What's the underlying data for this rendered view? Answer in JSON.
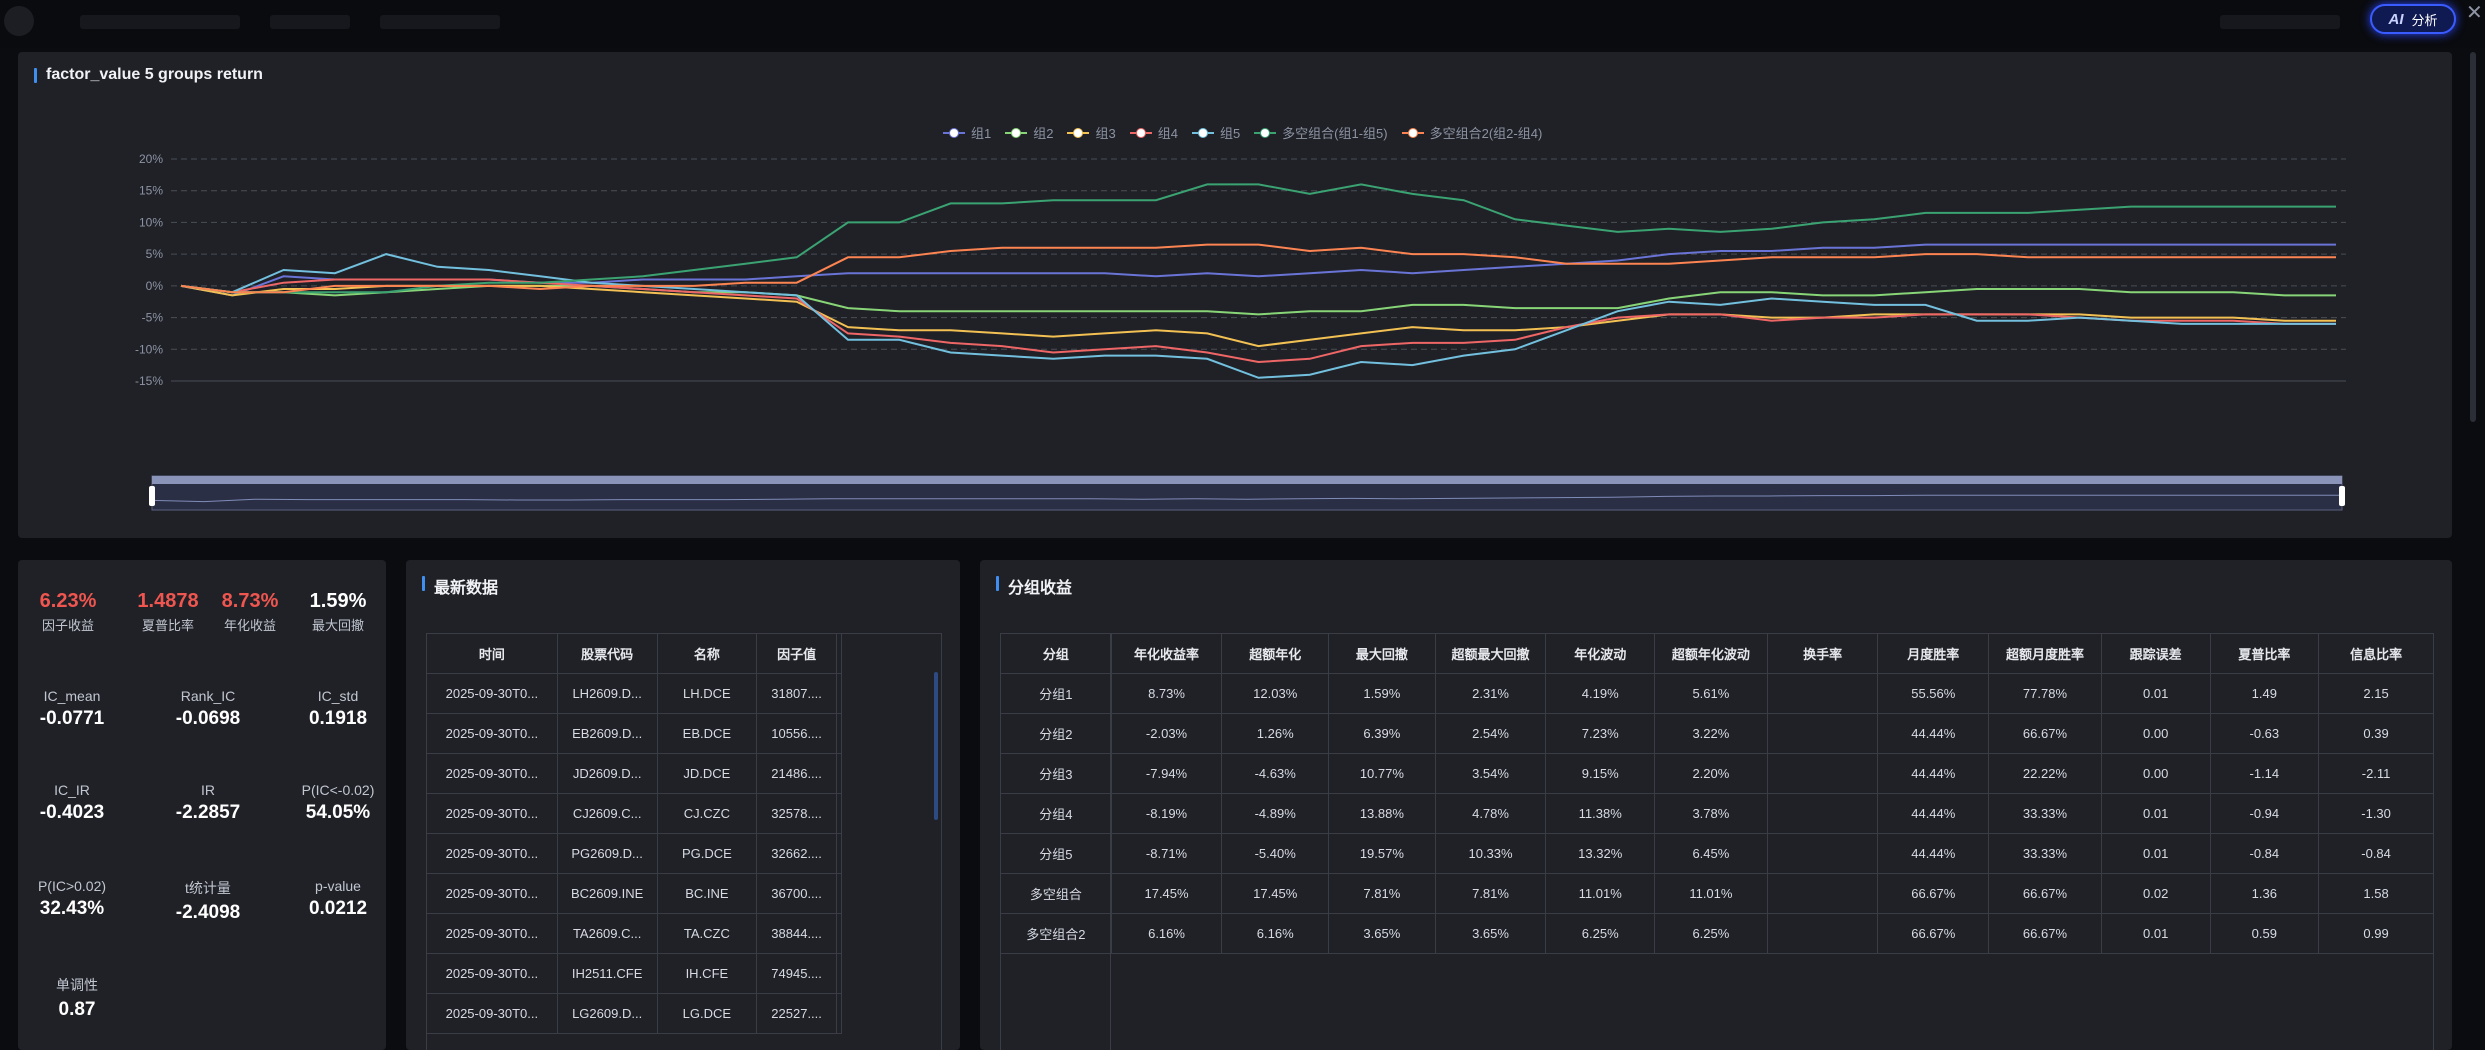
{
  "header": {
    "ai_button_label": "分析",
    "ai_icon_text": "AI",
    "close_glyph": "✕"
  },
  "chart_panel": {
    "title": "factor_value 5 groups return"
  },
  "chart_data": {
    "type": "line",
    "title": "factor_value 5 groups return",
    "ylim": [
      -15,
      20
    ],
    "y_ticks": [
      "20%",
      "15%",
      "10%",
      "5%",
      "0%",
      "-5%",
      "-10%",
      "-15%"
    ],
    "grid": true,
    "legend_position": "top-center",
    "series": [
      {
        "name": "组1",
        "color": "#6a74d6",
        "values": [
          0,
          -1.5,
          1.5,
          1,
          1,
          1,
          1,
          0.5,
          0.5,
          1,
          1,
          1,
          1.5,
          2,
          2,
          2,
          2,
          2,
          2,
          1.5,
          2,
          1.5,
          2,
          2.5,
          2,
          2.5,
          3,
          3.5,
          4,
          5,
          5.5,
          5.5,
          6,
          6,
          6.5,
          6.5,
          6.5,
          6.5,
          6.5,
          6.5,
          6.5,
          6.5,
          6.5
        ]
      },
      {
        "name": "组2",
        "color": "#88d577",
        "values": [
          0,
          -1,
          -1,
          -1.5,
          -1,
          -0.5,
          0,
          0,
          0,
          -0.5,
          -1,
          -1,
          -1.5,
          -3.5,
          -4,
          -4,
          -4,
          -4,
          -4,
          -4,
          -4,
          -4.5,
          -4,
          -4,
          -3,
          -3,
          -3.5,
          -3.5,
          -3.5,
          -2,
          -1,
          -1,
          -1.5,
          -1.5,
          -1,
          -0.5,
          -0.5,
          -0.5,
          -1,
          -1,
          -1,
          -1.5,
          -1.5
        ]
      },
      {
        "name": "组3",
        "color": "#f2c053",
        "values": [
          0,
          -1.5,
          -0.5,
          -0.5,
          0,
          0,
          0,
          0,
          -0.5,
          -1,
          -1.5,
          -2,
          -2.5,
          -6.5,
          -7,
          -7,
          -7.5,
          -8,
          -7.5,
          -7,
          -7.5,
          -9.5,
          -8.5,
          -7.5,
          -6.5,
          -7,
          -7,
          -6.5,
          -5.5,
          -4.5,
          -4.5,
          -5,
          -5,
          -4.5,
          -4.5,
          -4.5,
          -4.5,
          -4.5,
          -5,
          -5,
          -5,
          -5.5,
          -5.5
        ]
      },
      {
        "name": "组4",
        "color": "#ee6666",
        "values": [
          0,
          -1,
          0.5,
          1,
          1,
          1,
          1,
          0.5,
          0,
          -0.5,
          -1,
          -1.5,
          -2,
          -7.5,
          -8,
          -9,
          -9.5,
          -10.5,
          -10,
          -9.5,
          -10.5,
          -12,
          -11.5,
          -9.5,
          -9,
          -9,
          -8.5,
          -6.5,
          -5,
          -4.5,
          -4.5,
          -5.5,
          -5,
          -5,
          -4.5,
          -4.5,
          -4.5,
          -5,
          -5.5,
          -5.5,
          -5.5,
          -6,
          -6
        ]
      },
      {
        "name": "组5",
        "color": "#73c0de",
        "values": [
          0,
          -1,
          2.5,
          2,
          5,
          3,
          2.5,
          1.5,
          0.5,
          0,
          -0.5,
          -1,
          -1.5,
          -8.5,
          -8.5,
          -10.5,
          -11,
          -11.5,
          -11,
          -11,
          -11.5,
          -14.5,
          -14,
          -12,
          -12.5,
          -11,
          -10,
          -7,
          -4,
          -2.5,
          -3,
          -2,
          -2.5,
          -3,
          -3,
          -5.5,
          -5.5,
          -5,
          -5.5,
          -6,
          -6,
          -6,
          -6
        ]
      },
      {
        "name": "多空组合(组1-组5)",
        "color": "#3ba272",
        "values": [
          0,
          -1,
          -1,
          -1,
          -1,
          0,
          0.5,
          0.5,
          1,
          1.5,
          2.5,
          3.5,
          4.5,
          10,
          10,
          13,
          13,
          13.5,
          13.5,
          13.5,
          16,
          16,
          14.5,
          16,
          14.5,
          13.5,
          10.5,
          9.5,
          8.5,
          9,
          8.5,
          9,
          10,
          10.5,
          11.5,
          11.5,
          11.5,
          12,
          12.5,
          12.5,
          12.5,
          12.5,
          12.5
        ]
      },
      {
        "name": "多空组合2(组2-组4)",
        "color": "#fc8452",
        "values": [
          0,
          -1,
          -1,
          0,
          0,
          0,
          0,
          -0.5,
          0,
          0,
          0,
          0.5,
          0.5,
          4.5,
          4.5,
          5.5,
          6,
          6,
          6,
          6,
          6.5,
          6.5,
          5.5,
          6,
          5,
          5,
          4.5,
          3.5,
          3.5,
          3.5,
          4,
          4.5,
          4.5,
          4.5,
          5,
          5,
          4.5,
          4.5,
          4.5,
          4.5,
          4.5,
          4.5,
          4.5
        ]
      }
    ]
  },
  "stats": {
    "top": [
      {
        "value": "6.23%",
        "label": "因子收益",
        "red": true
      },
      {
        "value": "1.4878",
        "label": "夏普比率",
        "red": true
      },
      {
        "value": "8.73%",
        "label": "年化收益",
        "red": true
      },
      {
        "value": "1.59%",
        "label": "最大回撤",
        "red": false
      }
    ],
    "grid": [
      {
        "label": "IC_mean",
        "value": "-0.0771"
      },
      {
        "label": "Rank_IC",
        "value": "-0.0698"
      },
      {
        "label": "IC_std",
        "value": "0.1918"
      },
      {
        "label": "IC_IR",
        "value": "-0.4023"
      },
      {
        "label": "IR",
        "value": "-2.2857"
      },
      {
        "label": "P(IC<-0.02)",
        "value": "54.05%"
      },
      {
        "label": "P(IC>0.02)",
        "value": "32.43%"
      },
      {
        "label": "t统计量",
        "value": "-2.4098"
      },
      {
        "label": "p-value",
        "value": "0.0212"
      },
      {
        "label": "单调性",
        "value": "0.87"
      }
    ]
  },
  "latest": {
    "title": "最新数据",
    "columns": [
      "时间",
      "股票代码",
      "名称",
      "因子值"
    ],
    "rows": [
      [
        "2025-09-30T0...",
        "LH2609.D...",
        "LH.DCE",
        "31807...."
      ],
      [
        "2025-09-30T0...",
        "EB2609.D...",
        "EB.DCE",
        "10556...."
      ],
      [
        "2025-09-30T0...",
        "JD2609.D...",
        "JD.DCE",
        "21486...."
      ],
      [
        "2025-09-30T0...",
        "CJ2609.C...",
        "CJ.CZC",
        "32578...."
      ],
      [
        "2025-09-30T0...",
        "PG2609.D...",
        "PG.DCE",
        "32662...."
      ],
      [
        "2025-09-30T0...",
        "BC2609.INE",
        "BC.INE",
        "36700...."
      ],
      [
        "2025-09-30T0...",
        "TA2609.C...",
        "TA.CZC",
        "38844...."
      ],
      [
        "2025-09-30T0...",
        "IH2511.CFE",
        "IH.CFE",
        "74945...."
      ],
      [
        "2025-09-30T0...",
        "LG2609.D...",
        "LG.DCE",
        "22527...."
      ]
    ]
  },
  "groups": {
    "title": "分组收益",
    "columns": [
      "分组",
      "年化收益率",
      "超额年化",
      "最大回撤",
      "超额最大回撤",
      "年化波动",
      "超额年化波动",
      "换手率",
      "月度胜率",
      "超额月度胜率",
      "跟踪误差",
      "夏普比率",
      "信息比率"
    ],
    "rows": [
      [
        "分组1",
        "8.73%",
        "12.03%",
        "1.59%",
        "2.31%",
        "4.19%",
        "5.61%",
        "",
        "55.56%",
        "77.78%",
        "0.01",
        "1.49",
        "2.15"
      ],
      [
        "分组2",
        "-2.03%",
        "1.26%",
        "6.39%",
        "2.54%",
        "7.23%",
        "3.22%",
        "",
        "44.44%",
        "66.67%",
        "0.00",
        "-0.63",
        "0.39"
      ],
      [
        "分组3",
        "-7.94%",
        "-4.63%",
        "10.77%",
        "3.54%",
        "9.15%",
        "2.20%",
        "",
        "44.44%",
        "22.22%",
        "0.00",
        "-1.14",
        "-2.11"
      ],
      [
        "分组4",
        "-8.19%",
        "-4.89%",
        "13.88%",
        "4.78%",
        "11.38%",
        "3.78%",
        "",
        "44.44%",
        "33.33%",
        "0.01",
        "-0.94",
        "-1.30"
      ],
      [
        "分组5",
        "-8.71%",
        "-5.40%",
        "19.57%",
        "10.33%",
        "13.32%",
        "6.45%",
        "",
        "44.44%",
        "33.33%",
        "0.01",
        "-0.84",
        "-0.84"
      ],
      [
        "多空组合",
        "17.45%",
        "17.45%",
        "7.81%",
        "7.81%",
        "11.01%",
        "11.01%",
        "",
        "66.67%",
        "66.67%",
        "0.02",
        "1.36",
        "1.58"
      ],
      [
        "多空组合2",
        "6.16%",
        "6.16%",
        "3.65%",
        "3.65%",
        "6.25%",
        "6.25%",
        "",
        "66.67%",
        "66.67%",
        "0.01",
        "0.59",
        "0.99"
      ]
    ]
  }
}
